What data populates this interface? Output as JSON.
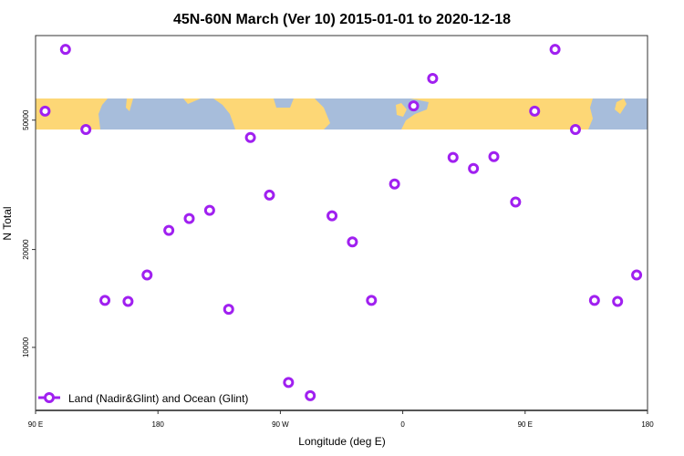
{
  "chart_data": {
    "type": "scatter",
    "title": "45N-60N March (Ver 10)   2015-01-01 to 2020-12-18",
    "xlabel": "Longitude (deg E)",
    "ylabel": "N Total",
    "x_ticks": [
      {
        "lon": 90,
        "label": "90 E"
      },
      {
        "lon": 180,
        "label": "180"
      },
      {
        "lon": 270,
        "label": "90 W"
      },
      {
        "lon": 360,
        "label": "0"
      },
      {
        "lon": 450,
        "label": "90 E"
      },
      {
        "lon": 540,
        "label": "180"
      }
    ],
    "xlim": [
      90,
      540
    ],
    "y_scale": "log",
    "ylim": [
      6400,
      91000
    ],
    "y_ticks": [
      {
        "value": 10000,
        "label": "10000"
      },
      {
        "value": 20000,
        "label": "20000"
      },
      {
        "value": 50000,
        "label": "50000"
      }
    ],
    "grid": false,
    "legend_position": "bottom-left",
    "colors": {
      "marker": "#a020f0",
      "land": "#fdd776",
      "ocean": "#a7bddb"
    },
    "series": [
      {
        "name": "Land (Nadir&Glint) and Ocean (Glint)",
        "points": [
          {
            "lon": 97,
            "n": 53300
          },
          {
            "lon": 112,
            "n": 82500
          },
          {
            "lon": 127,
            "n": 46800
          },
          {
            "lon": 141,
            "n": 13950
          },
          {
            "lon": 158,
            "n": 13850
          },
          {
            "lon": 172,
            "n": 16700
          },
          {
            "lon": -172,
            "n": 22900
          },
          {
            "lon": -157,
            "n": 24900
          },
          {
            "lon": -142,
            "n": 26400
          },
          {
            "lon": -128,
            "n": 13100
          },
          {
            "lon": -112,
            "n": 44200
          },
          {
            "lon": -98,
            "n": 29400
          },
          {
            "lon": -84,
            "n": 7800
          },
          {
            "lon": -68,
            "n": 7100
          },
          {
            "lon": -52,
            "n": 25400
          },
          {
            "lon": -37,
            "n": 21100
          },
          {
            "lon": -23,
            "n": 13950
          },
          {
            "lon": -6,
            "n": 31800
          },
          {
            "lon": 8,
            "n": 55300
          },
          {
            "lon": 22,
            "n": 67200
          },
          {
            "lon": 37,
            "n": 38400
          },
          {
            "lon": 52,
            "n": 35500
          },
          {
            "lon": 67,
            "n": 38600
          },
          {
            "lon": 83,
            "n": 28000
          }
        ]
      }
    ]
  }
}
